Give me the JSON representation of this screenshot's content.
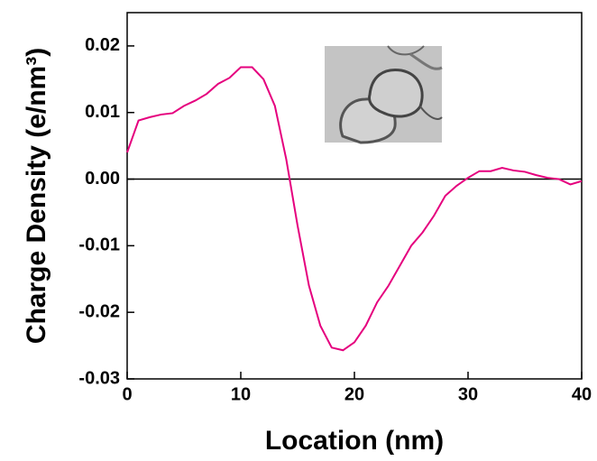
{
  "chart_data": {
    "type": "line",
    "xlabel": "Location (nm)",
    "ylabel": "Charge Density (e/nm³)",
    "x": [
      0,
      1,
      2,
      3,
      4,
      5,
      6,
      7,
      8,
      9,
      10,
      11,
      12,
      13,
      14,
      15,
      16,
      17,
      18,
      19,
      20,
      21,
      22,
      23,
      24,
      25,
      26,
      27,
      28,
      29,
      30,
      31,
      32,
      33,
      34,
      35,
      36,
      37,
      38,
      39,
      40
    ],
    "series": [
      {
        "color": "#e5007e",
        "values": [
          0.004,
          0.0088,
          0.0093,
          0.0097,
          0.0099,
          0.011,
          0.0118,
          0.0128,
          0.0143,
          0.0152,
          0.0168,
          0.0168,
          0.015,
          0.011,
          0.003,
          -0.007,
          -0.016,
          -0.022,
          -0.0253,
          -0.0257,
          -0.0245,
          -0.022,
          -0.0185,
          -0.016,
          -0.013,
          -0.01,
          -0.008,
          -0.0055,
          -0.0025,
          -0.001,
          0.0002,
          0.0012,
          0.0012,
          0.0017,
          0.0013,
          0.0011,
          0.0006,
          0.0002,
          0.0,
          -0.0008,
          -0.0003
        ]
      }
    ],
    "xlim": [
      0,
      40
    ],
    "xticks": [
      0,
      10,
      20,
      30,
      40
    ],
    "ylim": [
      -0.03,
      0.025
    ],
    "yticks": [
      -0.03,
      -0.02,
      -0.01,
      {
        "value": 0,
        "label": "0.00"
      },
      0.01,
      0.02
    ],
    "grid": false
  }
}
